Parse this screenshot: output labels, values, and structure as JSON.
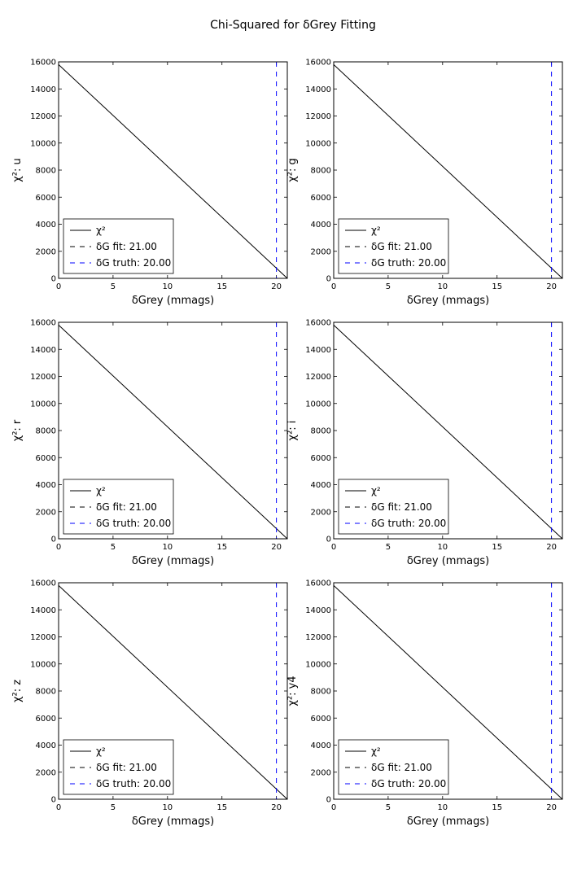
{
  "title": "Chi-Squared for δGrey Fitting",
  "chart_data": [
    {
      "type": "line",
      "panel": "u",
      "xlabel": "δGrey (mmags)",
      "ylabel": "χ²: u",
      "xlim": [
        0,
        21
      ],
      "ylim": [
        0,
        16000
      ],
      "xticks": [
        0,
        5,
        10,
        15,
        20
      ],
      "yticks": [
        0,
        2000,
        4000,
        6000,
        8000,
        10000,
        12000,
        14000,
        16000
      ],
      "grid": false,
      "legend": "lower-left",
      "series": [
        {
          "name": "χ²",
          "style": "solid",
          "color": "#000000",
          "x": [
            0,
            21
          ],
          "y": [
            15800,
            0
          ]
        },
        {
          "name": "δG fit: 21.00",
          "style": "dashed",
          "color": "#000000",
          "vline_x": 21.0
        },
        {
          "name": "δG truth: 20.00",
          "style": "dashed",
          "color": "#0000ff",
          "vline_x": 20.0
        }
      ]
    },
    {
      "type": "line",
      "panel": "g",
      "xlabel": "δGrey (mmags)",
      "ylabel": "χ²: g",
      "xlim": [
        0,
        21
      ],
      "ylim": [
        0,
        16000
      ],
      "xticks": [
        0,
        5,
        10,
        15,
        20
      ],
      "yticks": [
        0,
        2000,
        4000,
        6000,
        8000,
        10000,
        12000,
        14000,
        16000
      ],
      "grid": false,
      "legend": "lower-left",
      "series": [
        {
          "name": "χ²",
          "style": "solid",
          "color": "#000000",
          "x": [
            0,
            21
          ],
          "y": [
            15800,
            0
          ]
        },
        {
          "name": "δG fit: 21.00",
          "style": "dashed",
          "color": "#000000",
          "vline_x": 21.0
        },
        {
          "name": "δG truth: 20.00",
          "style": "dashed",
          "color": "#0000ff",
          "vline_x": 20.0
        }
      ]
    },
    {
      "type": "line",
      "panel": "r",
      "xlabel": "δGrey (mmags)",
      "ylabel": "χ²: r",
      "xlim": [
        0,
        21
      ],
      "ylim": [
        0,
        16000
      ],
      "xticks": [
        0,
        5,
        10,
        15,
        20
      ],
      "yticks": [
        0,
        2000,
        4000,
        6000,
        8000,
        10000,
        12000,
        14000,
        16000
      ],
      "grid": false,
      "legend": "lower-left",
      "series": [
        {
          "name": "χ²",
          "style": "solid",
          "color": "#000000",
          "x": [
            0,
            21
          ],
          "y": [
            15800,
            0
          ]
        },
        {
          "name": "δG fit: 21.00",
          "style": "dashed",
          "color": "#000000",
          "vline_x": 21.0
        },
        {
          "name": "δG truth: 20.00",
          "style": "dashed",
          "color": "#0000ff",
          "vline_x": 20.0
        }
      ]
    },
    {
      "type": "line",
      "panel": "i",
      "xlabel": "δGrey (mmags)",
      "ylabel": "χ²: i",
      "xlim": [
        0,
        21
      ],
      "ylim": [
        0,
        16000
      ],
      "xticks": [
        0,
        5,
        10,
        15,
        20
      ],
      "yticks": [
        0,
        2000,
        4000,
        6000,
        8000,
        10000,
        12000,
        14000,
        16000
      ],
      "grid": false,
      "legend": "lower-left",
      "series": [
        {
          "name": "χ²",
          "style": "solid",
          "color": "#000000",
          "x": [
            0,
            21
          ],
          "y": [
            15800,
            0
          ]
        },
        {
          "name": "δG fit: 21.00",
          "style": "dashed",
          "color": "#000000",
          "vline_x": 21.0
        },
        {
          "name": "δG truth: 20.00",
          "style": "dashed",
          "color": "#0000ff",
          "vline_x": 20.0
        }
      ]
    },
    {
      "type": "line",
      "panel": "z",
      "xlabel": "δGrey (mmags)",
      "ylabel": "χ²: z",
      "xlim": [
        0,
        21
      ],
      "ylim": [
        0,
        16000
      ],
      "xticks": [
        0,
        5,
        10,
        15,
        20
      ],
      "yticks": [
        0,
        2000,
        4000,
        6000,
        8000,
        10000,
        12000,
        14000,
        16000
      ],
      "grid": false,
      "legend": "lower-left",
      "series": [
        {
          "name": "χ²",
          "style": "solid",
          "color": "#000000",
          "x": [
            0,
            21
          ],
          "y": [
            15800,
            0
          ]
        },
        {
          "name": "δG fit: 21.00",
          "style": "dashed",
          "color": "#000000",
          "vline_x": 21.0
        },
        {
          "name": "δG truth: 20.00",
          "style": "dashed",
          "color": "#0000ff",
          "vline_x": 20.0
        }
      ]
    },
    {
      "type": "line",
      "panel": "y4",
      "xlabel": "δGrey (mmags)",
      "ylabel": "χ²: y4",
      "xlim": [
        0,
        21
      ],
      "ylim": [
        0,
        16000
      ],
      "xticks": [
        0,
        5,
        10,
        15,
        20
      ],
      "yticks": [
        0,
        2000,
        4000,
        6000,
        8000,
        10000,
        12000,
        14000,
        16000
      ],
      "grid": false,
      "legend": "lower-left",
      "series": [
        {
          "name": "χ²",
          "style": "solid",
          "color": "#000000",
          "x": [
            0,
            21
          ],
          "y": [
            15800,
            0
          ]
        },
        {
          "name": "δG fit: 21.00",
          "style": "dashed",
          "color": "#000000",
          "vline_x": 21.0
        },
        {
          "name": "δG truth: 20.00",
          "style": "dashed",
          "color": "#0000ff",
          "vline_x": 20.0
        }
      ]
    }
  ]
}
